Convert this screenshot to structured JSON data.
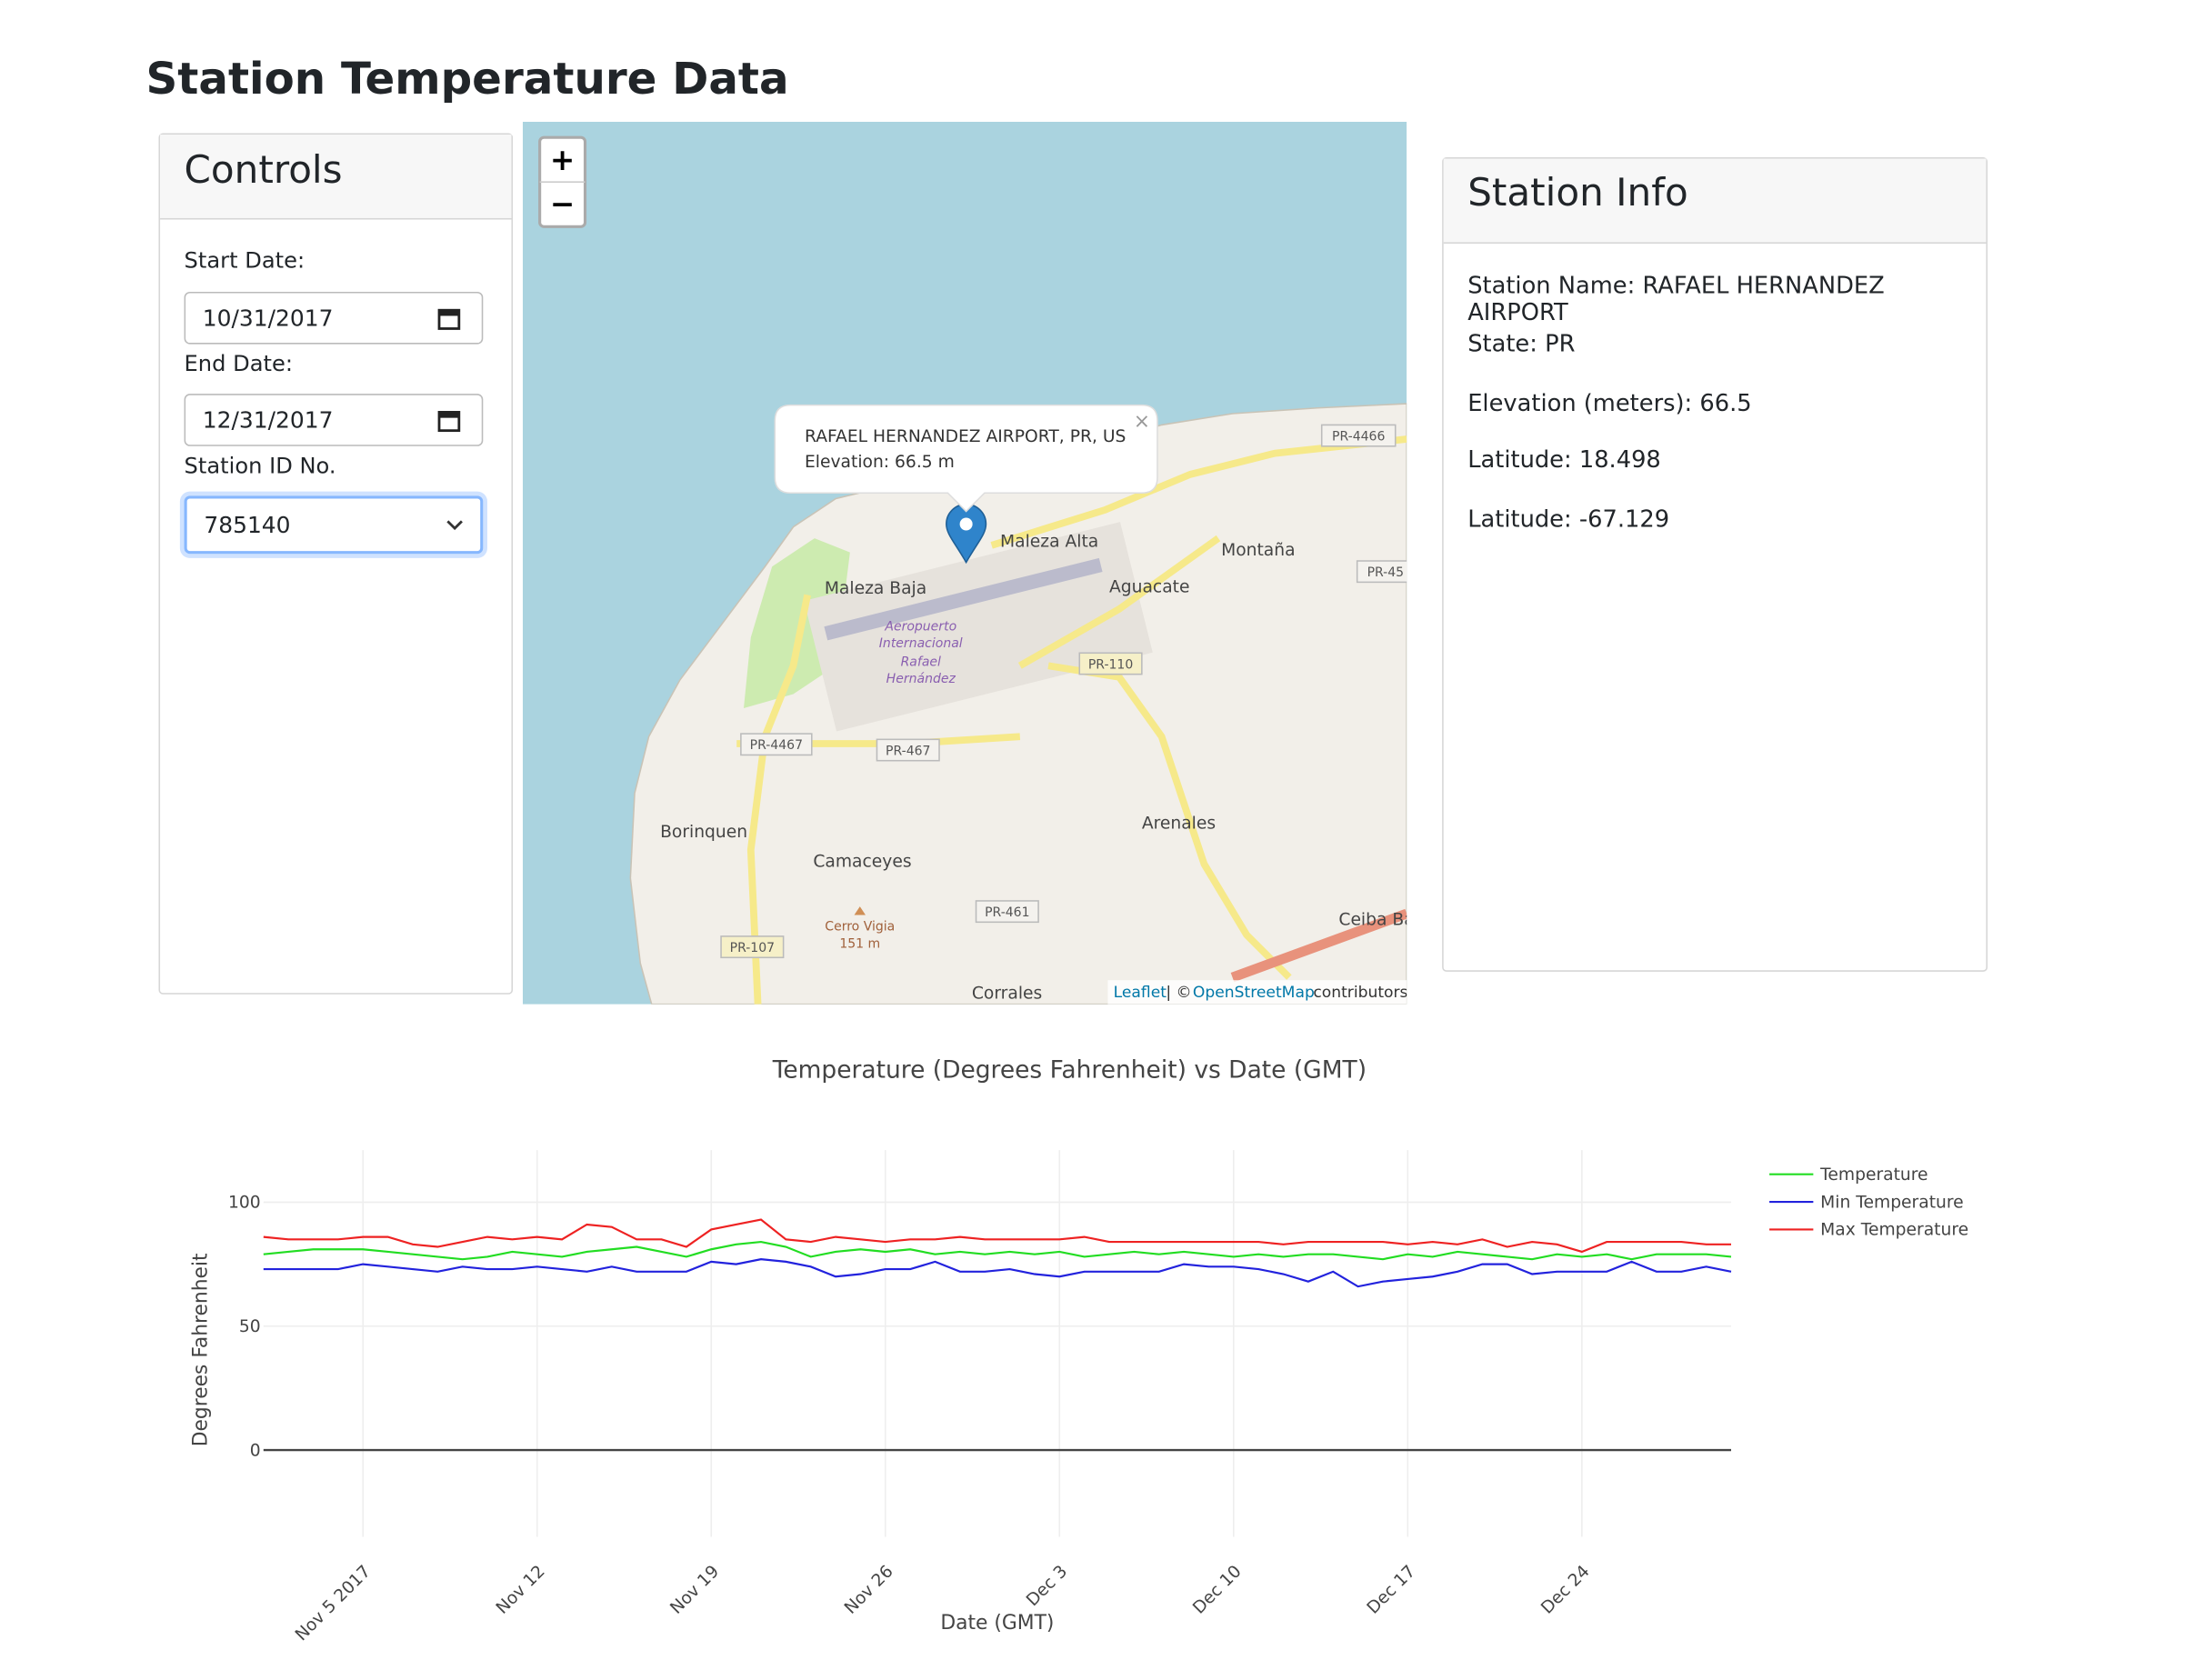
{
  "header": {
    "title": "Station Temperature Data"
  },
  "controls": {
    "title": "Controls",
    "start_label": "Start Date:",
    "start_value": "10/31/2017",
    "end_label": "End Date:",
    "end_value": "12/31/2017",
    "station_label": "Station ID No.",
    "station_value": "785140"
  },
  "map": {
    "zoom_in": "+",
    "zoom_out": "−",
    "popup": {
      "name": "RAFAEL HERNANDEZ AIRPORT, PR, US",
      "elevation": "Elevation: 66.5 m",
      "close": "×"
    },
    "places": [
      "Maleza Alta",
      "Maleza Baja",
      "Aguacate",
      "Montaña",
      "Borinquen",
      "Camaceyes",
      "Arenales",
      "Corrales",
      "Ceiba Ba"
    ],
    "airport": [
      "Aeropuerto",
      "Internacional",
      "Rafael",
      "Hernández"
    ],
    "peak": [
      "Cerro Vigia",
      "151 m"
    ],
    "roads": [
      "PR-4466",
      "PR-110",
      "PR-4467",
      "PR-467",
      "PR-461",
      "PR-107",
      "PR-45"
    ],
    "attribution": {
      "leaflet": "Leaflet",
      "sep": "| ©",
      "osm": "OpenStreetMap",
      "contributors": "contributors"
    }
  },
  "station_info": {
    "title": "Station Info",
    "lines": [
      "Station Name: RAFAEL HERNANDEZ AIRPORT",
      "State: PR",
      "Elevation (meters): 66.5",
      "Latitude: 18.498",
      "Latitude: -67.129"
    ]
  },
  "chart_data": {
    "type": "line",
    "title": "Temperature (Degrees Fahrenheit) vs Date (GMT)",
    "x_label": "Date (GMT)",
    "y_label": "Degrees Fahrenheit",
    "x": [
      "2017-11-01",
      "2017-11-02",
      "2017-11-03",
      "2017-11-04",
      "2017-11-05",
      "2017-11-06",
      "2017-11-07",
      "2017-11-08",
      "2017-11-09",
      "2017-11-10",
      "2017-11-11",
      "2017-11-12",
      "2017-11-13",
      "2017-11-14",
      "2017-11-15",
      "2017-11-16",
      "2017-11-17",
      "2017-11-18",
      "2017-11-19",
      "2017-11-20",
      "2017-11-21",
      "2017-11-22",
      "2017-11-23",
      "2017-11-24",
      "2017-11-25",
      "2017-11-26",
      "2017-11-27",
      "2017-11-28",
      "2017-11-29",
      "2017-11-30",
      "2017-12-01",
      "2017-12-02",
      "2017-12-03",
      "2017-12-04",
      "2017-12-05",
      "2017-12-06",
      "2017-12-07",
      "2017-12-08",
      "2017-12-09",
      "2017-12-10",
      "2017-12-11",
      "2017-12-12",
      "2017-12-13",
      "2017-12-14",
      "2017-12-15",
      "2017-12-16",
      "2017-12-17",
      "2017-12-18",
      "2017-12-19",
      "2017-12-20",
      "2017-12-21",
      "2017-12-22",
      "2017-12-23",
      "2017-12-24",
      "2017-12-25",
      "2017-12-26",
      "2017-12-27",
      "2017-12-28",
      "2017-12-29",
      "2017-12-30"
    ],
    "series": [
      {
        "name": "Temperature",
        "color": "#22dd22",
        "values": [
          79,
          80,
          81,
          81,
          81,
          80,
          79,
          78,
          77,
          78,
          80,
          79,
          78,
          80,
          81,
          82,
          80,
          78,
          81,
          83,
          84,
          82,
          78,
          80,
          81,
          80,
          81,
          79,
          80,
          79,
          80,
          79,
          80,
          78,
          79,
          80,
          79,
          80,
          79,
          78,
          79,
          78,
          79,
          79,
          78,
          77,
          79,
          78,
          80,
          79,
          78,
          77,
          79,
          78,
          79,
          77,
          79,
          79,
          79,
          78
        ]
      },
      {
        "name": "Min Temperature",
        "color": "#2222dd",
        "values": [
          73,
          73,
          73,
          73,
          75,
          74,
          73,
          72,
          74,
          73,
          73,
          74,
          73,
          72,
          74,
          72,
          72,
          72,
          76,
          75,
          77,
          76,
          74,
          70,
          71,
          73,
          73,
          76,
          72,
          72,
          73,
          71,
          70,
          72,
          72,
          72,
          72,
          75,
          74,
          74,
          73,
          71,
          68,
          72,
          66,
          68,
          69,
          70,
          72,
          75,
          75,
          71,
          72,
          72,
          72,
          76,
          72,
          72,
          74,
          72
        ]
      },
      {
        "name": "Max Temperature",
        "color": "#ee2222",
        "values": [
          86,
          85,
          85,
          85,
          86,
          86,
          83,
          82,
          84,
          86,
          85,
          86,
          85,
          91,
          90,
          85,
          85,
          82,
          89,
          91,
          93,
          85,
          84,
          86,
          85,
          84,
          85,
          85,
          86,
          85,
          85,
          85,
          85,
          86,
          84,
          84,
          84,
          84,
          84,
          84,
          84,
          83,
          84,
          84,
          84,
          84,
          83,
          84,
          83,
          85,
          82,
          84,
          83,
          80,
          84,
          84,
          84,
          84,
          83,
          83
        ]
      }
    ],
    "xlim": [
      "2017-11-01",
      "2017-12-30"
    ],
    "xticks": [
      {
        "value": "2017-11-05",
        "label": "Nov 5 2017"
      },
      {
        "value": "2017-11-12",
        "label": "Nov 12"
      },
      {
        "value": "2017-11-19",
        "label": "Nov 19"
      },
      {
        "value": "2017-11-26",
        "label": "Nov 26"
      },
      {
        "value": "2017-12-03",
        "label": "Dec 3"
      },
      {
        "value": "2017-12-10",
        "label": "Dec 10"
      },
      {
        "value": "2017-12-17",
        "label": "Dec 17"
      },
      {
        "value": "2017-12-24",
        "label": "Dec 24"
      }
    ],
    "ylim": [
      -35,
      121
    ],
    "yticks": [
      0,
      50,
      100
    ],
    "grid": true,
    "legend": "right"
  }
}
